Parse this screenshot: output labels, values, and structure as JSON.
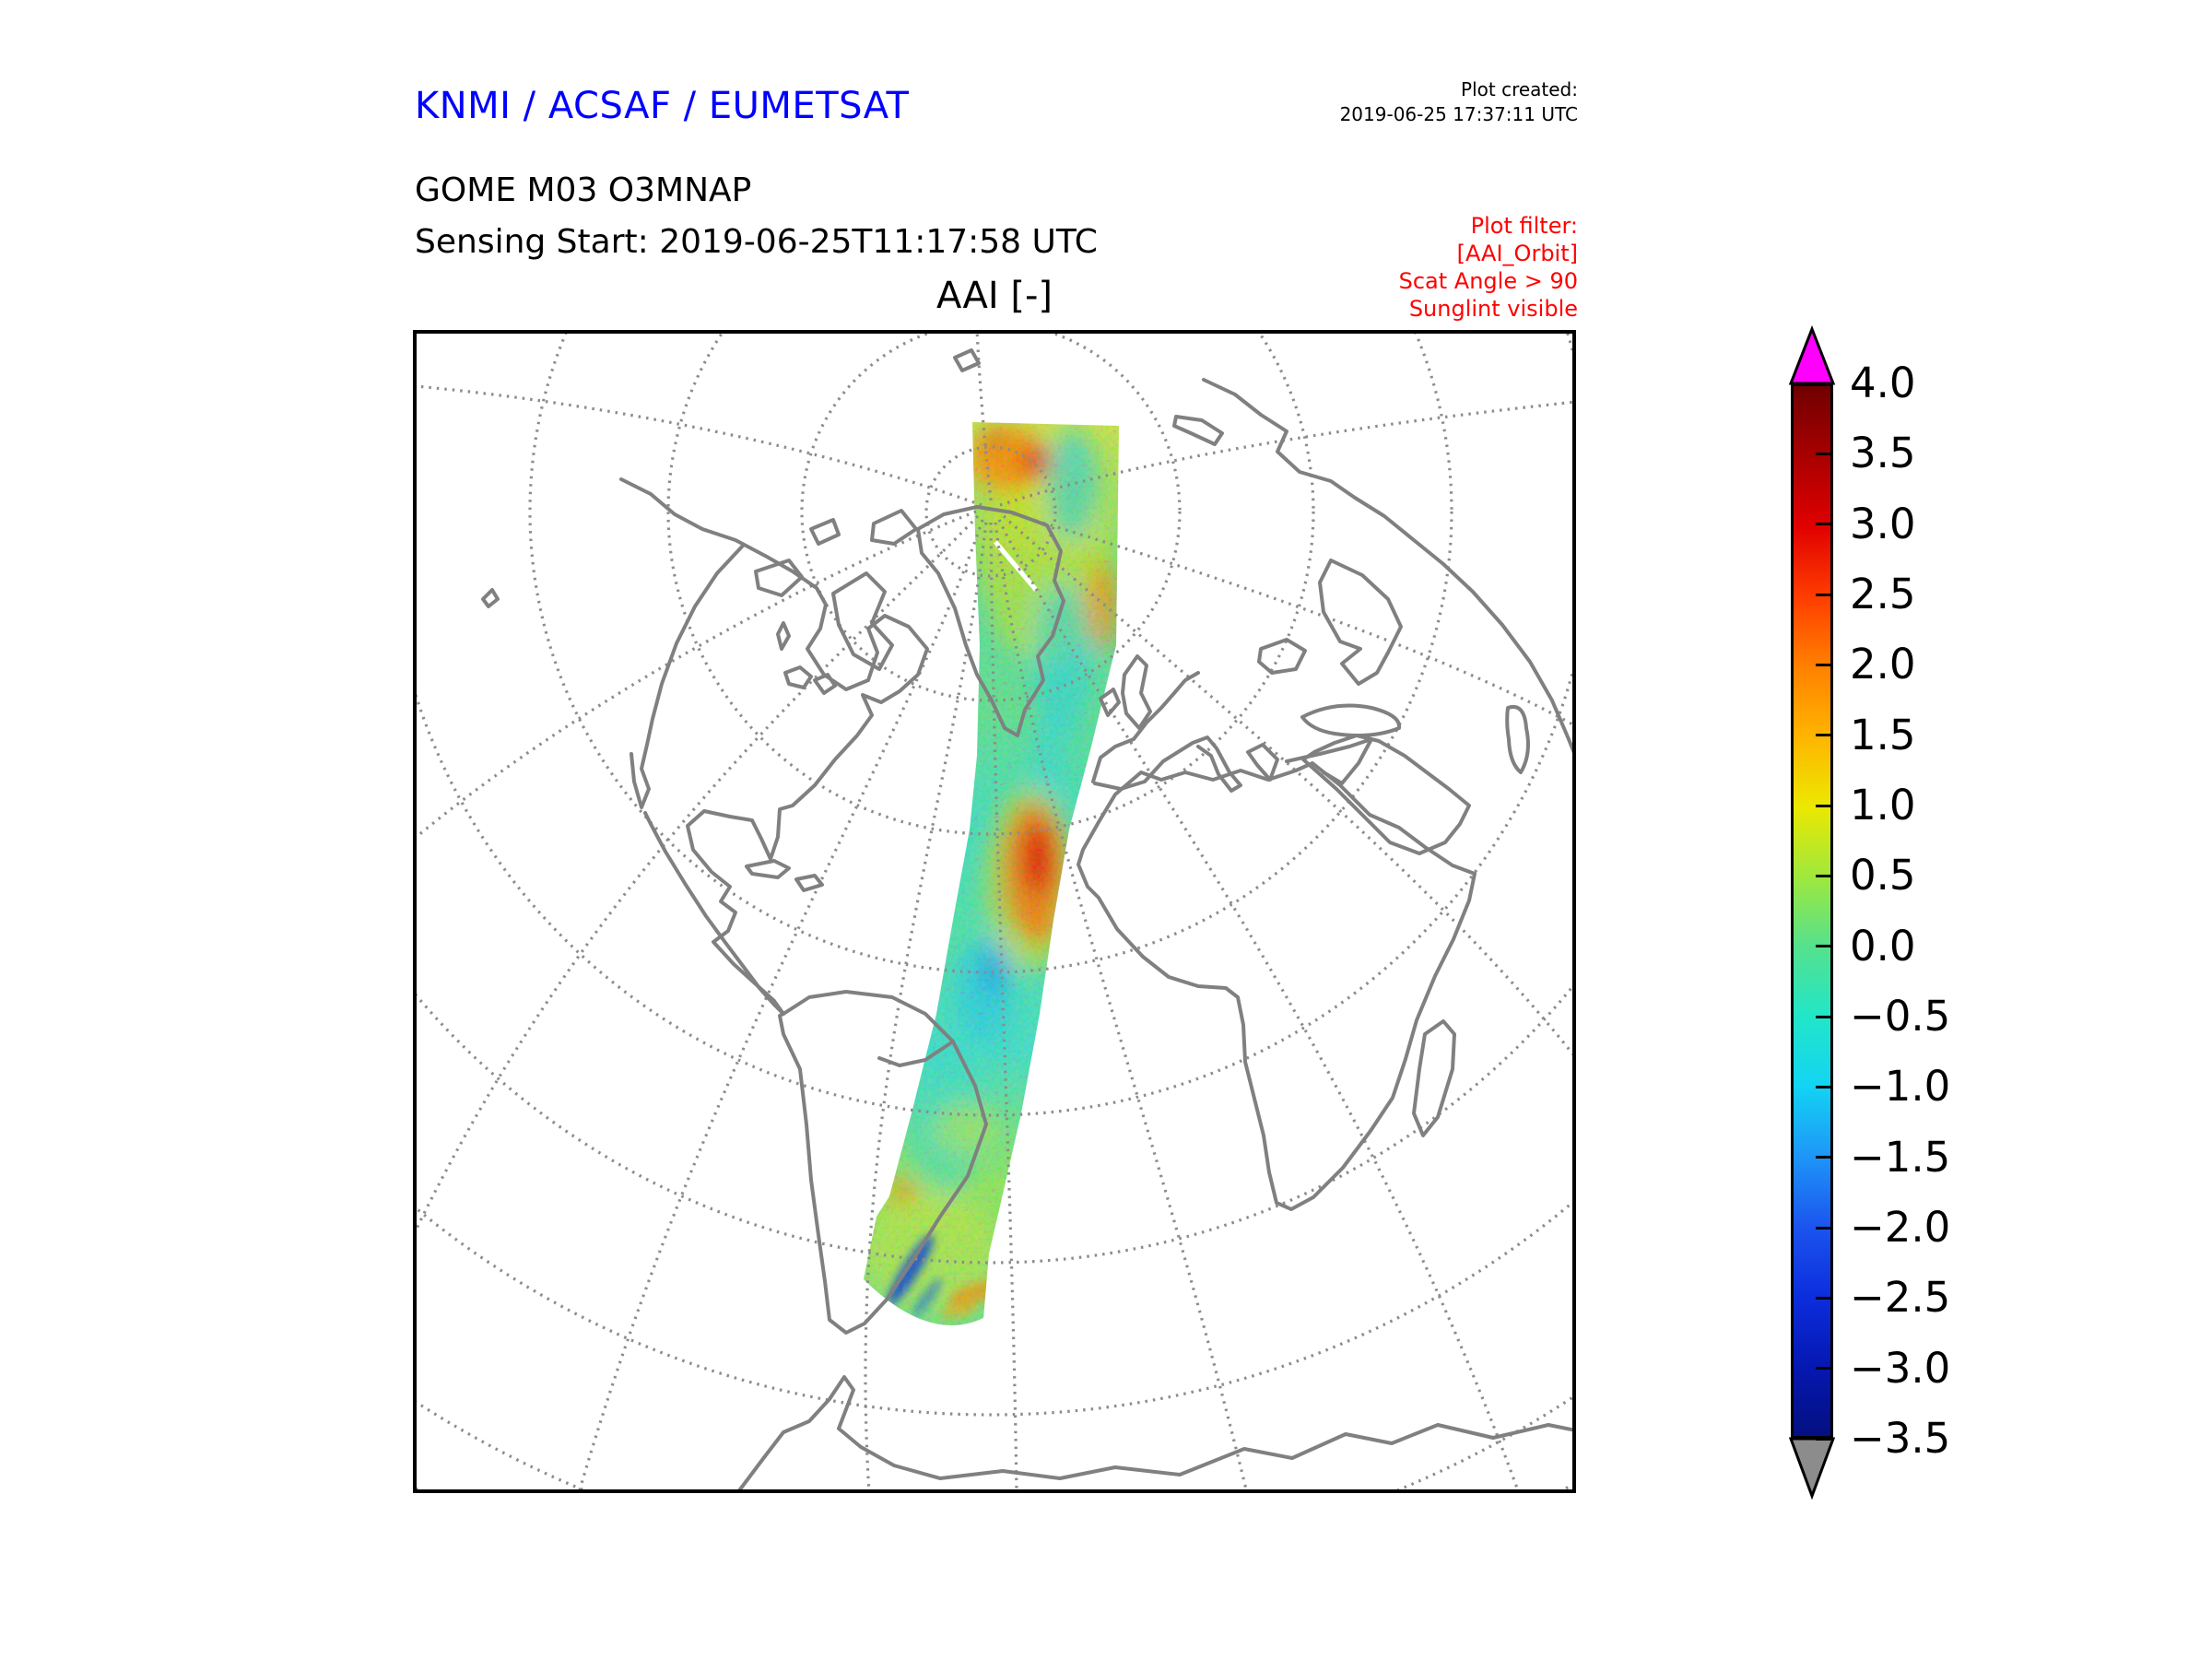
{
  "header": {
    "brand": "KNMI / ACSAF / EUMETSAT",
    "plot_created_label": "Plot created:",
    "plot_created_value": "2019-06-25 17:37:11 UTC",
    "product": "GOME M03 O3MNAP",
    "sensing_start": "Sensing Start: 2019-06-25T11:17:58 UTC"
  },
  "map": {
    "title": "AAI [-]",
    "projection": "orthographic",
    "filter_note": [
      "Plot filter:",
      "[AAI_Orbit]",
      "Scat Angle > 90",
      "Sunglint visible"
    ]
  },
  "colorbar": {
    "tick_labels": [
      "4.0",
      "3.5",
      "3.0",
      "2.5",
      "2.0",
      "1.5",
      "1.0",
      "0.5",
      "0.0",
      "−0.5",
      "−1.0",
      "−1.5",
      "−2.0",
      "−2.5",
      "−3.0",
      "−3.5"
    ],
    "range_max": 4.0,
    "range_min": -3.5,
    "over_arrow_color": "#ff00ff",
    "under_arrow_color": "#8c8c8c",
    "gradient_stops": [
      {
        "v": 4.0,
        "c": "#700000"
      },
      {
        "v": 3.5,
        "c": "#a80000"
      },
      {
        "v": 3.0,
        "c": "#e00000"
      },
      {
        "v": 2.5,
        "c": "#ff3c00"
      },
      {
        "v": 2.0,
        "c": "#ff8000"
      },
      {
        "v": 1.5,
        "c": "#ffb400"
      },
      {
        "v": 1.0,
        "c": "#ece800"
      },
      {
        "v": 0.5,
        "c": "#a0e83c"
      },
      {
        "v": 0.0,
        "c": "#55e18c"
      },
      {
        "v": -0.5,
        "c": "#22e6c8"
      },
      {
        "v": -1.0,
        "c": "#12d4f4"
      },
      {
        "v": -1.5,
        "c": "#1e96f8"
      },
      {
        "v": -2.0,
        "c": "#1c55ee"
      },
      {
        "v": -2.5,
        "c": "#0c2ede"
      },
      {
        "v": -3.0,
        "c": "#0518b2"
      },
      {
        "v": -3.5,
        "c": "#041080"
      }
    ]
  },
  "colors": {
    "brand_blue": "#0000ff",
    "filter_red": "#ff0000",
    "coastline_gray": "#808080",
    "graticule_gray": "#8c8c8c"
  },
  "chart_data": {
    "type": "heatmap",
    "title": "AAI [-]",
    "description": "Absorbing Aerosol Index of a single GOME-2 / Metop (M03) orbit swath plotted on an orthographic world map (Atlantic view: Americas, Greenland, Europe, Africa, Antarctica visible)",
    "colorbar_range": [
      -3.5,
      4.0
    ],
    "colorbar_tick_step": 0.5,
    "colorbar_ticks": [
      4.0,
      3.5,
      3.0,
      2.5,
      2.0,
      1.5,
      1.0,
      0.5,
      0.0,
      -0.5,
      -1.0,
      -1.5,
      -2.0,
      -2.5,
      -3.0,
      -3.5
    ],
    "over_range_color": "magenta",
    "under_range_color": "gray",
    "swath_path": "north-to-south band from the Arctic (over Svalbard/Greenland edge) down the eastern Atlantic past West Africa to the Southern Ocean near Patagonia",
    "typical_swath_values": "mostly -1.5 to 1.5 (cyan/green/yellow)",
    "hotspots": [
      {
        "region": "Arctic, top of swath",
        "approx_value": 2.5
      },
      {
        "region": "Saharan dust plume west of Africa (~20N)",
        "approx_value": 3.5
      },
      {
        "region": "secondary plume south of it",
        "approx_value": 2.5
      },
      {
        "region": "South Atlantic streaks near bottom of swath",
        "approx_value": 2.0
      },
      {
        "region": "dark blue streak near 50S",
        "approx_value": -2.5
      }
    ],
    "graticule": "dotted gray meridians/parallels around a pole near top center",
    "legend_position": "vertical colorbar at right"
  }
}
